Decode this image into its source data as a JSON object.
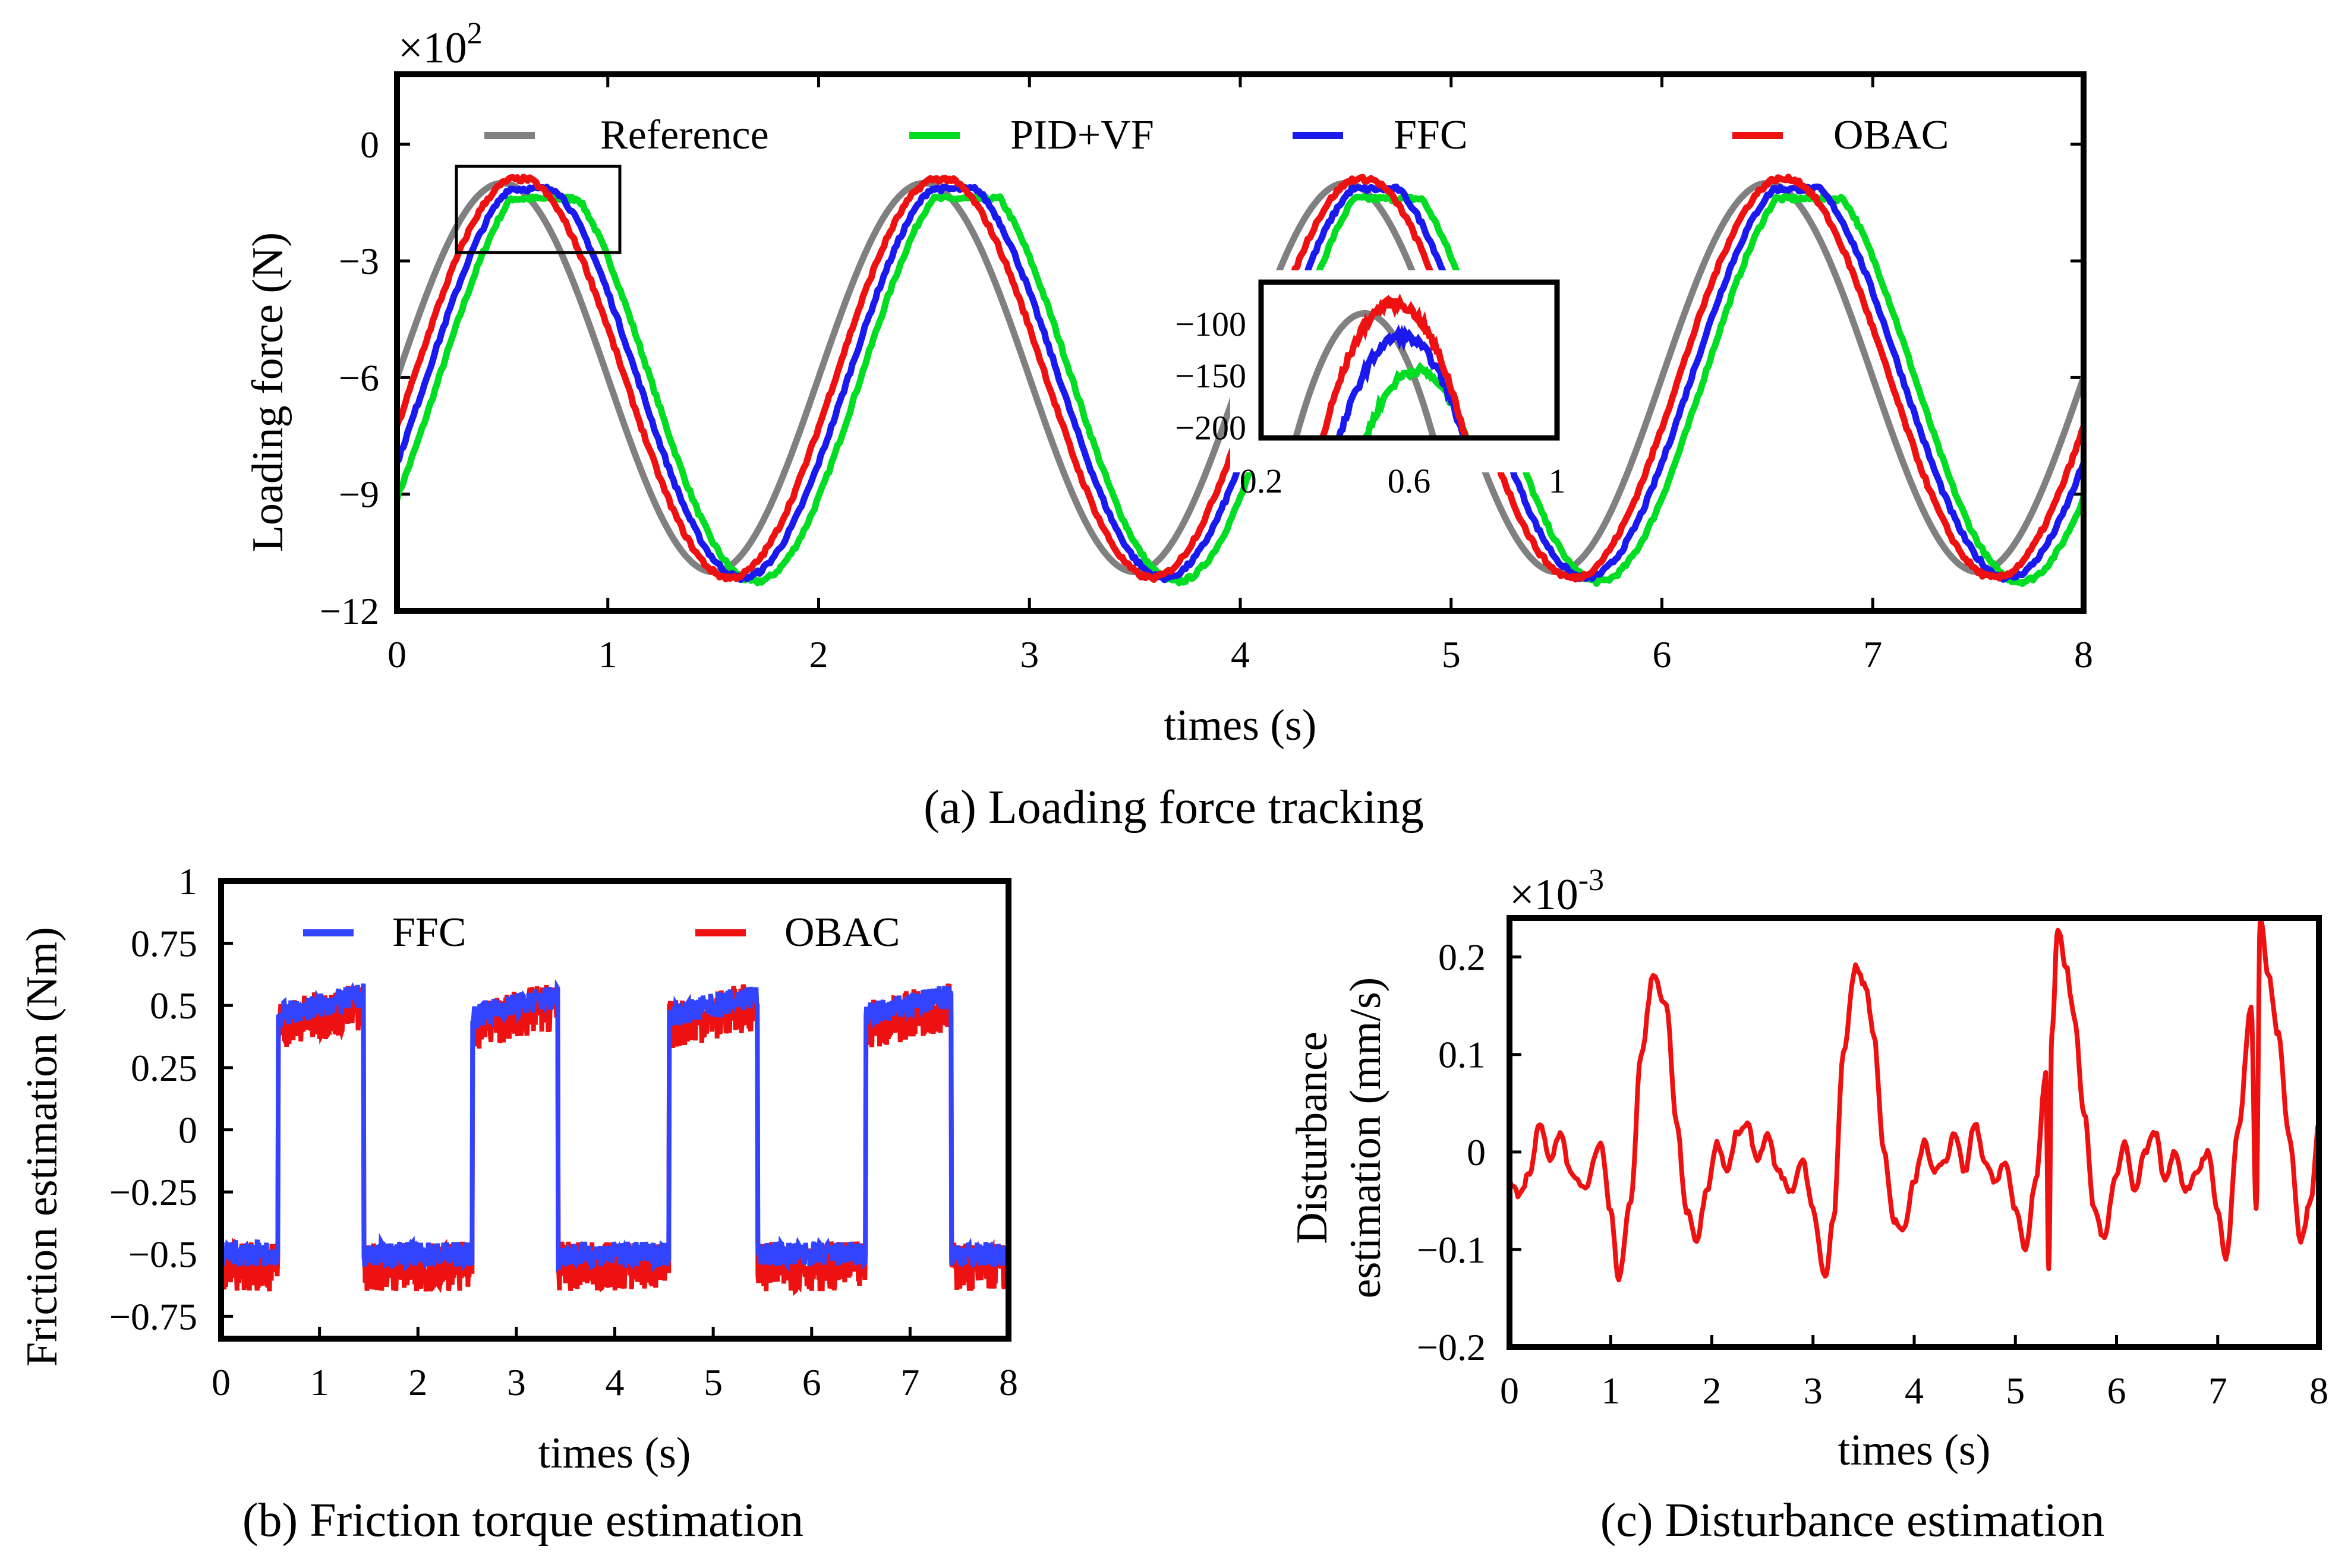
{
  "chart_data": [
    {
      "id": "a",
      "type": "line",
      "caption_label": "(a)",
      "caption_text": "Loading force tracking",
      "xlabel": "times (s)",
      "ylabel": "Loading force (N)",
      "scale_label": "×10",
      "scale_exp": "2",
      "xlim": [
        0,
        8
      ],
      "ylim": [
        -12,
        1.8
      ],
      "xticks": [
        0,
        1,
        2,
        3,
        4,
        5,
        6,
        7,
        8
      ],
      "yticks": [
        0,
        -3,
        -6,
        -9,
        -12
      ],
      "signal": {
        "period": 2,
        "center": -6,
        "amplitude": 5,
        "peak_time": 0.5
      },
      "series": [
        {
          "name": "Reference",
          "color": "#808080",
          "lag": 0.0,
          "gain": 1.0,
          "clip_low": -11.2,
          "clip_high": -1.0
        },
        {
          "name": "PID+VF",
          "color": "#00dd22",
          "lag": 0.2,
          "gain": 1.05,
          "clip_low": -11.5,
          "clip_high": -1.4
        },
        {
          "name": "FFC",
          "color": "#1a1aee",
          "lag": 0.14,
          "gain": 1.03,
          "clip_low": -11.4,
          "clip_high": -1.15
        },
        {
          "name": "OBAC",
          "color": "#ee1111",
          "lag": 0.08,
          "gain": 1.03,
          "clip_low": -11.3,
          "clip_high": -0.9
        }
      ],
      "inset": {
        "xlim": [
          0.2,
          1.0
        ],
        "ylim": [
          -210,
          -60
        ],
        "xticks": [
          "0.2",
          "0.6",
          "1"
        ],
        "yticks": [
          "−100",
          "−150",
          "−200"
        ],
        "peaks": [
          {
            "name": "Reference",
            "peak": -90,
            "peak_time": 0.48
          },
          {
            "name": "PID+VF",
            "peak": -145,
            "peak_time": 0.62
          },
          {
            "name": "FFC",
            "peak": -112,
            "peak_time": 0.58
          },
          {
            "name": "OBAC",
            "peak": -80,
            "peak_time": 0.56
          }
        ]
      }
    },
    {
      "id": "b",
      "type": "line",
      "caption_label": "(b)",
      "caption_text": "Friction torque estimation",
      "xlabel": "times (s)",
      "ylabel": "Friction estimation (Nm)",
      "xlim": [
        0,
        8
      ],
      "ylim": [
        -0.84,
        1
      ],
      "xticks": [
        0,
        1,
        2,
        3,
        4,
        5,
        6,
        7,
        8
      ],
      "ytick_labels": [
        "1",
        "0.75",
        "0.5",
        "0.25",
        "0",
        "−0.25",
        "−0.5",
        "−0.75"
      ],
      "ytick_values": [
        1,
        0.75,
        0.5,
        0.25,
        0,
        -0.25,
        -0.5,
        -0.75
      ],
      "high_intervals": [
        [
          0.58,
          1.45
        ],
        [
          2.55,
          3.42
        ],
        [
          4.55,
          5.45
        ],
        [
          6.55,
          7.42
        ]
      ],
      "series": [
        {
          "name": "FFC",
          "color": "#3344ff",
          "high": 0.46,
          "low": -0.5,
          "noise": 0.05
        },
        {
          "name": "OBAC",
          "color": "#ee1111",
          "high": 0.42,
          "low": -0.55,
          "noise": 0.1
        }
      ]
    },
    {
      "id": "c",
      "type": "line",
      "caption_label": "(c)",
      "caption_text": "Disturbance estimation",
      "xlabel": "times (s)",
      "ylabel_line1": "Disturbance",
      "ylabel_line2": "estimation (mm/s)",
      "scale_label": "×10",
      "scale_exp": "-3",
      "xlim": [
        0,
        8
      ],
      "ylim": [
        -0.2,
        0.24
      ],
      "xticks": [
        0,
        1,
        2,
        3,
        4,
        5,
        6,
        7,
        8
      ],
      "ytick_labels": [
        "0.2",
        "0.1",
        "0",
        "−0.1",
        "−0.2"
      ],
      "ytick_values": [
        0.2,
        0.1,
        0,
        -0.1,
        -0.2
      ],
      "color": "#ee1111",
      "points": [
        [
          0.0,
          -0.03
        ],
        [
          0.1,
          -0.045
        ],
        [
          0.2,
          -0.02
        ],
        [
          0.3,
          0.03
        ],
        [
          0.4,
          -0.01
        ],
        [
          0.5,
          0.02
        ],
        [
          0.6,
          -0.02
        ],
        [
          0.75,
          -0.035
        ],
        [
          0.9,
          0.01
        ],
        [
          1.0,
          -0.06
        ],
        [
          1.08,
          -0.13
        ],
        [
          1.2,
          -0.05
        ],
        [
          1.3,
          0.1
        ],
        [
          1.42,
          0.18
        ],
        [
          1.55,
          0.15
        ],
        [
          1.65,
          0.03
        ],
        [
          1.75,
          -0.06
        ],
        [
          1.85,
          -0.09
        ],
        [
          1.95,
          -0.04
        ],
        [
          2.05,
          0.01
        ],
        [
          2.15,
          -0.02
        ],
        [
          2.25,
          0.02
        ],
        [
          2.35,
          0.03
        ],
        [
          2.45,
          -0.01
        ],
        [
          2.55,
          0.02
        ],
        [
          2.65,
          -0.02
        ],
        [
          2.78,
          -0.04
        ],
        [
          2.9,
          -0.01
        ],
        [
          3.0,
          -0.06
        ],
        [
          3.12,
          -0.13
        ],
        [
          3.2,
          -0.07
        ],
        [
          3.3,
          0.1
        ],
        [
          3.42,
          0.19
        ],
        [
          3.52,
          0.17
        ],
        [
          3.6,
          0.12
        ],
        [
          3.7,
          0.0
        ],
        [
          3.8,
          -0.07
        ],
        [
          3.9,
          -0.08
        ],
        [
          4.0,
          -0.03
        ],
        [
          4.1,
          0.01
        ],
        [
          4.2,
          -0.02
        ],
        [
          4.3,
          -0.01
        ],
        [
          4.4,
          0.02
        ],
        [
          4.5,
          -0.02
        ],
        [
          4.6,
          0.03
        ],
        [
          4.7,
          -0.01
        ],
        [
          4.8,
          -0.03
        ],
        [
          4.9,
          -0.01
        ],
        [
          5.0,
          -0.06
        ],
        [
          5.1,
          -0.1
        ],
        [
          5.2,
          -0.03
        ],
        [
          5.3,
          0.08
        ],
        [
          5.33,
          -0.12
        ],
        [
          5.36,
          0.12
        ],
        [
          5.42,
          0.23
        ],
        [
          5.5,
          0.19
        ],
        [
          5.58,
          0.14
        ],
        [
          5.68,
          0.04
        ],
        [
          5.78,
          -0.06
        ],
        [
          5.88,
          -0.09
        ],
        [
          5.98,
          -0.03
        ],
        [
          6.08,
          0.01
        ],
        [
          6.18,
          -0.04
        ],
        [
          6.28,
          0.0
        ],
        [
          6.38,
          0.02
        ],
        [
          6.48,
          -0.03
        ],
        [
          6.58,
          0.0
        ],
        [
          6.68,
          -0.04
        ],
        [
          6.8,
          -0.02
        ],
        [
          6.9,
          0.0
        ],
        [
          7.0,
          -0.06
        ],
        [
          7.08,
          -0.11
        ],
        [
          7.2,
          0.02
        ],
        [
          7.33,
          0.15
        ],
        [
          7.38,
          -0.06
        ],
        [
          7.42,
          0.24
        ],
        [
          7.5,
          0.18
        ],
        [
          7.6,
          0.12
        ],
        [
          7.7,
          0.02
        ],
        [
          7.82,
          -0.09
        ],
        [
          7.92,
          -0.05
        ],
        [
          8.0,
          0.03
        ]
      ]
    }
  ]
}
